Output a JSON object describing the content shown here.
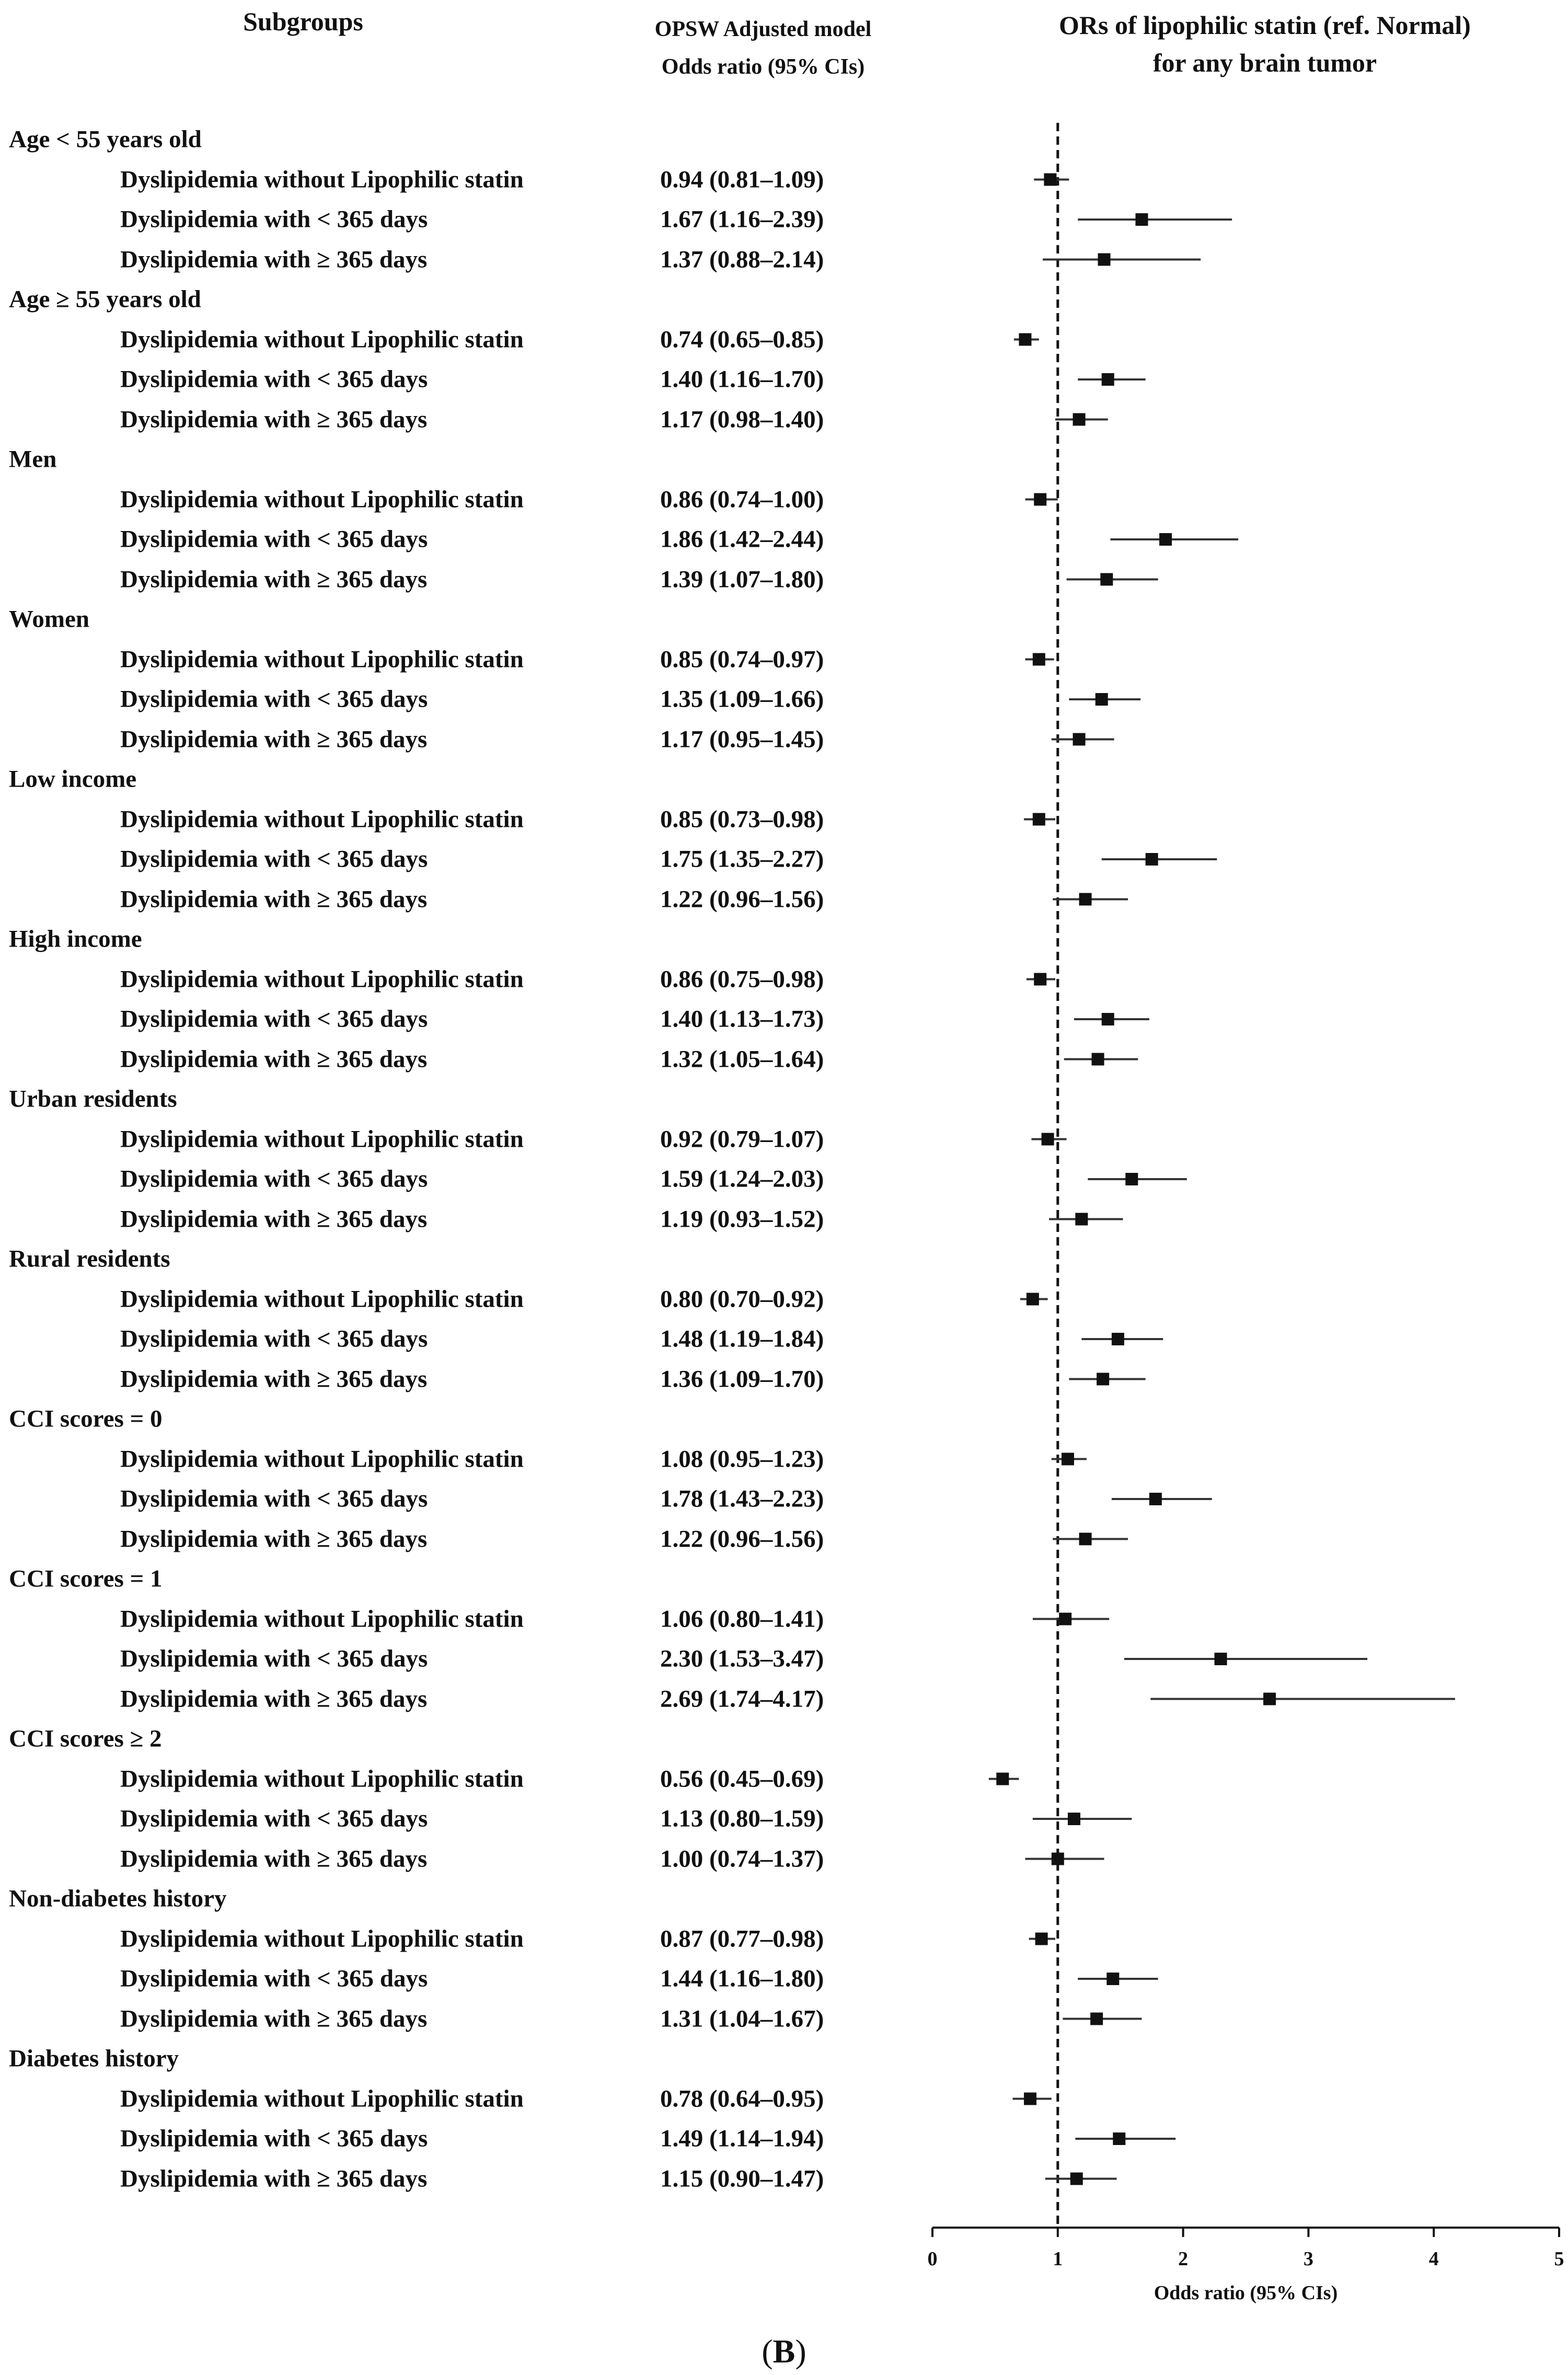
{
  "headers": {
    "subgroups": "Subgroups",
    "model_line1": "OPSW Adjusted model",
    "model_line2": "Odds ratio (95% CIs)",
    "plot_title_line1": "ORs of lipophilic statin (ref. Normal)",
    "plot_title_line2": "for any brain tumor"
  },
  "caption_open": "(",
  "caption_letter": "B",
  "caption_close": ")",
  "colors": {
    "marker": "#111111",
    "ci_line": "#333333",
    "axis": "#111111"
  },
  "chart_data": {
    "type": "forest",
    "title": "ORs of lipophilic statin (ref. Normal) for any brain tumor",
    "xlabel": "Odds ratio (95% CIs)",
    "xlim": [
      0,
      5
    ],
    "xticks": [
      0,
      1,
      2,
      3,
      4,
      5
    ],
    "reference_line": 1,
    "groups": [
      {
        "label": "Age < 55 years old",
        "rows": [
          {
            "label": "Dyslipidemia without Lipophilic statin",
            "text": "0.94 (0.81–1.09)",
            "or": 0.94,
            "lo": 0.81,
            "hi": 1.09
          },
          {
            "label": "Dyslipidemia with < 365 days",
            "text": "1.67 (1.16–2.39)",
            "or": 1.67,
            "lo": 1.16,
            "hi": 2.39
          },
          {
            "label": "Dyslipidemia with ≥ 365 days",
            "text": "1.37 (0.88–2.14)",
            "or": 1.37,
            "lo": 0.88,
            "hi": 2.14
          }
        ]
      },
      {
        "label": "Age ≥ 55 years old",
        "rows": [
          {
            "label": "Dyslipidemia without Lipophilic statin",
            "text": "0.74 (0.65–0.85)",
            "or": 0.74,
            "lo": 0.65,
            "hi": 0.85
          },
          {
            "label": "Dyslipidemia with < 365 days",
            "text": "1.40 (1.16–1.70)",
            "or": 1.4,
            "lo": 1.16,
            "hi": 1.7
          },
          {
            "label": "Dyslipidemia with ≥ 365 days",
            "text": "1.17 (0.98–1.40)",
            "or": 1.17,
            "lo": 0.98,
            "hi": 1.4
          }
        ]
      },
      {
        "label": "Men",
        "rows": [
          {
            "label": "Dyslipidemia without Lipophilic statin",
            "text": "0.86 (0.74–1.00)",
            "or": 0.86,
            "lo": 0.74,
            "hi": 1.0
          },
          {
            "label": "Dyslipidemia with < 365 days",
            "text": "1.86 (1.42–2.44)",
            "or": 1.86,
            "lo": 1.42,
            "hi": 2.44
          },
          {
            "label": "Dyslipidemia with ≥ 365 days",
            "text": "1.39 (1.07–1.80)",
            "or": 1.39,
            "lo": 1.07,
            "hi": 1.8
          }
        ]
      },
      {
        "label": "Women",
        "rows": [
          {
            "label": "Dyslipidemia without Lipophilic statin",
            "text": "0.85 (0.74–0.97)",
            "or": 0.85,
            "lo": 0.74,
            "hi": 0.97
          },
          {
            "label": "Dyslipidemia with < 365 days",
            "text": "1.35 (1.09–1.66)",
            "or": 1.35,
            "lo": 1.09,
            "hi": 1.66
          },
          {
            "label": "Dyslipidemia with ≥ 365 days",
            "text": "1.17 (0.95–1.45)",
            "or": 1.17,
            "lo": 0.95,
            "hi": 1.45
          }
        ]
      },
      {
        "label": "Low income",
        "rows": [
          {
            "label": "Dyslipidemia without Lipophilic statin",
            "text": "0.85 (0.73–0.98)",
            "or": 0.85,
            "lo": 0.73,
            "hi": 0.98
          },
          {
            "label": "Dyslipidemia with < 365 days",
            "text": "1.75 (1.35–2.27)",
            "or": 1.75,
            "lo": 1.35,
            "hi": 2.27
          },
          {
            "label": "Dyslipidemia with ≥ 365 days",
            "text": "1.22 (0.96–1.56)",
            "or": 1.22,
            "lo": 0.96,
            "hi": 1.56
          }
        ]
      },
      {
        "label": "High income",
        "rows": [
          {
            "label": "Dyslipidemia without Lipophilic statin",
            "text": "0.86 (0.75–0.98)",
            "or": 0.86,
            "lo": 0.75,
            "hi": 0.98
          },
          {
            "label": "Dyslipidemia with < 365 days",
            "text": "1.40 (1.13–1.73)",
            "or": 1.4,
            "lo": 1.13,
            "hi": 1.73
          },
          {
            "label": "Dyslipidemia with ≥ 365 days",
            "text": "1.32 (1.05–1.64)",
            "or": 1.32,
            "lo": 1.05,
            "hi": 1.64
          }
        ]
      },
      {
        "label": "Urban residents",
        "rows": [
          {
            "label": "Dyslipidemia without Lipophilic statin",
            "text": "0.92 (0.79–1.07)",
            "or": 0.92,
            "lo": 0.79,
            "hi": 1.07
          },
          {
            "label": "Dyslipidemia with < 365 days",
            "text": "1.59 (1.24–2.03)",
            "or": 1.59,
            "lo": 1.24,
            "hi": 2.03
          },
          {
            "label": "Dyslipidemia with ≥ 365 days",
            "text": "1.19 (0.93–1.52)",
            "or": 1.19,
            "lo": 0.93,
            "hi": 1.52
          }
        ]
      },
      {
        "label": "Rural residents",
        "rows": [
          {
            "label": "Dyslipidemia without Lipophilic statin",
            "text": "0.80 (0.70–0.92)",
            "or": 0.8,
            "lo": 0.7,
            "hi": 0.92
          },
          {
            "label": "Dyslipidemia with < 365 days",
            "text": "1.48 (1.19–1.84)",
            "or": 1.48,
            "lo": 1.19,
            "hi": 1.84
          },
          {
            "label": "Dyslipidemia with ≥ 365 days",
            "text": "1.36 (1.09–1.70)",
            "or": 1.36,
            "lo": 1.09,
            "hi": 1.7
          }
        ]
      },
      {
        "label": "CCI scores = 0",
        "rows": [
          {
            "label": "Dyslipidemia without Lipophilic statin",
            "text": "1.08 (0.95–1.23)",
            "or": 1.08,
            "lo": 0.95,
            "hi": 1.23
          },
          {
            "label": "Dyslipidemia with < 365 days",
            "text": "1.78 (1.43–2.23)",
            "or": 1.78,
            "lo": 1.43,
            "hi": 2.23
          },
          {
            "label": "Dyslipidemia with ≥ 365 days",
            "text": "1.22 (0.96–1.56)",
            "or": 1.22,
            "lo": 0.96,
            "hi": 1.56
          }
        ]
      },
      {
        "label": "CCI scores = 1",
        "rows": [
          {
            "label": "Dyslipidemia without Lipophilic statin",
            "text": "1.06 (0.80–1.41)",
            "or": 1.06,
            "lo": 0.8,
            "hi": 1.41
          },
          {
            "label": "Dyslipidemia with < 365 days",
            "text": "2.30 (1.53–3.47)",
            "or": 2.3,
            "lo": 1.53,
            "hi": 3.47
          },
          {
            "label": "Dyslipidemia with ≥ 365 days",
            "text": "2.69 (1.74–4.17)",
            "or": 2.69,
            "lo": 1.74,
            "hi": 4.17
          }
        ]
      },
      {
        "label": "CCI scores ≥ 2",
        "rows": [
          {
            "label": "Dyslipidemia without Lipophilic statin",
            "text": "0.56 (0.45–0.69)",
            "or": 0.56,
            "lo": 0.45,
            "hi": 0.69
          },
          {
            "label": "Dyslipidemia with < 365 days",
            "text": "1.13 (0.80–1.59)",
            "or": 1.13,
            "lo": 0.8,
            "hi": 1.59
          },
          {
            "label": "Dyslipidemia with ≥ 365 days",
            "text": "1.00 (0.74–1.37)",
            "or": 1.0,
            "lo": 0.74,
            "hi": 1.37
          }
        ]
      },
      {
        "label": "Non-diabetes history",
        "rows": [
          {
            "label": "Dyslipidemia without Lipophilic statin",
            "text": "0.87 (0.77–0.98)",
            "or": 0.87,
            "lo": 0.77,
            "hi": 0.98
          },
          {
            "label": "Dyslipidemia with < 365 days",
            "text": "1.44 (1.16–1.80)",
            "or": 1.44,
            "lo": 1.16,
            "hi": 1.8
          },
          {
            "label": "Dyslipidemia with ≥ 365 days",
            "text": "1.31 (1.04–1.67)",
            "or": 1.31,
            "lo": 1.04,
            "hi": 1.67
          }
        ]
      },
      {
        "label": "Diabetes history",
        "rows": [
          {
            "label": "Dyslipidemia without Lipophilic statin",
            "text": "0.78 (0.64–0.95)",
            "or": 0.78,
            "lo": 0.64,
            "hi": 0.95
          },
          {
            "label": "Dyslipidemia with < 365 days",
            "text": "1.49 (1.14–1.94)",
            "or": 1.49,
            "lo": 1.14,
            "hi": 1.94
          },
          {
            "label": "Dyslipidemia with ≥ 365 days",
            "text": "1.15 (0.90–1.47)",
            "or": 1.15,
            "lo": 0.9,
            "hi": 1.47
          }
        ]
      }
    ]
  }
}
